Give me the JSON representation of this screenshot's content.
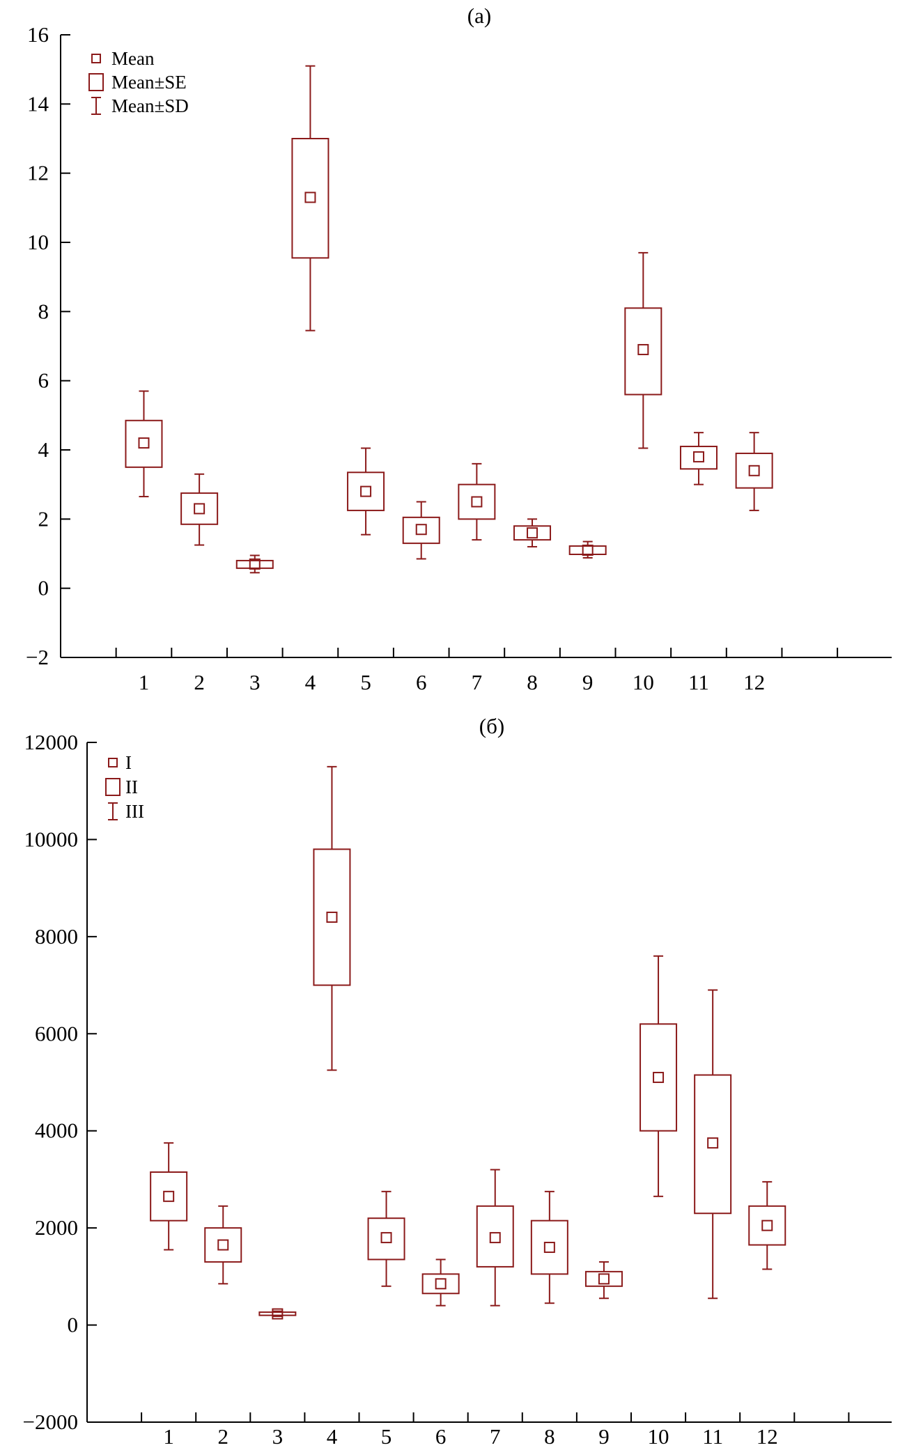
{
  "chart_data": [
    {
      "type": "box",
      "title": "(a)",
      "categories": [
        "1",
        "2",
        "3",
        "4",
        "5",
        "6",
        "7",
        "8",
        "9",
        "10",
        "11",
        "12"
      ],
      "ylim": [
        -2,
        16
      ],
      "yticks": [
        -2,
        0,
        2,
        4,
        6,
        8,
        10,
        12,
        14,
        16
      ],
      "ytick_labels": [
        "−2",
        "0",
        "2",
        "4",
        "6",
        "8",
        "10",
        "12",
        "14",
        "16"
      ],
      "legend": {
        "position": "top-left",
        "entries": [
          "Mean",
          "Mean±SE",
          "Mean±SD"
        ]
      },
      "series": [
        {
          "category": "1",
          "mean": 4.2,
          "se_low": 3.5,
          "se_high": 4.85,
          "sd_low": 2.65,
          "sd_high": 5.7
        },
        {
          "category": "2",
          "mean": 2.3,
          "se_low": 1.85,
          "se_high": 2.75,
          "sd_low": 1.25,
          "sd_high": 3.3
        },
        {
          "category": "3",
          "mean": 0.7,
          "se_low": 0.58,
          "se_high": 0.8,
          "sd_low": 0.45,
          "sd_high": 0.95
        },
        {
          "category": "4",
          "mean": 11.3,
          "se_low": 9.55,
          "se_high": 13.0,
          "sd_low": 7.45,
          "sd_high": 15.1
        },
        {
          "category": "5",
          "mean": 2.8,
          "se_low": 2.25,
          "se_high": 3.35,
          "sd_low": 1.55,
          "sd_high": 4.05
        },
        {
          "category": "6",
          "mean": 1.7,
          "se_low": 1.3,
          "se_high": 2.05,
          "sd_low": 0.85,
          "sd_high": 2.5
        },
        {
          "category": "7",
          "mean": 2.5,
          "se_low": 2.0,
          "se_high": 3.0,
          "sd_low": 1.4,
          "sd_high": 3.6
        },
        {
          "category": "8",
          "mean": 1.6,
          "se_low": 1.4,
          "se_high": 1.8,
          "sd_low": 1.2,
          "sd_high": 2.0
        },
        {
          "category": "9",
          "mean": 1.1,
          "se_low": 0.98,
          "se_high": 1.22,
          "sd_low": 0.88,
          "sd_high": 1.35
        },
        {
          "category": "10",
          "mean": 6.9,
          "se_low": 5.6,
          "se_high": 8.1,
          "sd_low": 4.05,
          "sd_high": 9.7
        },
        {
          "category": "11",
          "mean": 3.8,
          "se_low": 3.45,
          "se_high": 4.1,
          "sd_low": 3.0,
          "sd_high": 4.5
        },
        {
          "category": "12",
          "mean": 3.4,
          "se_low": 2.9,
          "se_high": 3.9,
          "sd_low": 2.25,
          "sd_high": 4.5
        }
      ]
    },
    {
      "type": "box",
      "title": "(б)",
      "categories": [
        "1",
        "2",
        "3",
        "4",
        "5",
        "6",
        "7",
        "8",
        "9",
        "10",
        "11",
        "12"
      ],
      "ylim": [
        -2000,
        12000
      ],
      "yticks": [
        -2000,
        0,
        2000,
        4000,
        6000,
        8000,
        10000,
        12000
      ],
      "ytick_labels": [
        "−2000",
        "0",
        "2000",
        "4000",
        "6000",
        "8000",
        "10000",
        "12000"
      ],
      "legend": {
        "position": "top-left",
        "entries": [
          "I",
          "II",
          "III"
        ]
      },
      "series": [
        {
          "category": "1",
          "mean": 2650,
          "se_low": 2150,
          "se_high": 3150,
          "sd_low": 1550,
          "sd_high": 3750
        },
        {
          "category": "2",
          "mean": 1650,
          "se_low": 1300,
          "se_high": 2000,
          "sd_low": 850,
          "sd_high": 2450
        },
        {
          "category": "3",
          "mean": 230,
          "se_low": 200,
          "se_high": 265,
          "sd_low": 180,
          "sd_high": 285
        },
        {
          "category": "4",
          "mean": 8400,
          "se_low": 7000,
          "se_high": 9800,
          "sd_low": 5250,
          "sd_high": 11500
        },
        {
          "category": "5",
          "mean": 1800,
          "se_low": 1350,
          "se_high": 2200,
          "sd_low": 800,
          "sd_high": 2750
        },
        {
          "category": "6",
          "mean": 850,
          "se_low": 650,
          "se_high": 1050,
          "sd_low": 400,
          "sd_high": 1350
        },
        {
          "category": "7",
          "mean": 1800,
          "se_low": 1200,
          "se_high": 2450,
          "sd_low": 400,
          "sd_high": 3200
        },
        {
          "category": "8",
          "mean": 1600,
          "se_low": 1050,
          "se_high": 2150,
          "sd_low": 450,
          "sd_high": 2750
        },
        {
          "category": "9",
          "mean": 950,
          "se_low": 800,
          "se_high": 1100,
          "sd_low": 550,
          "sd_high": 1300
        },
        {
          "category": "10",
          "mean": 5100,
          "se_low": 4000,
          "se_high": 6200,
          "sd_low": 2650,
          "sd_high": 7600
        },
        {
          "category": "11",
          "mean": 3750,
          "se_low": 2300,
          "se_high": 5150,
          "sd_low": 550,
          "sd_high": 6900
        },
        {
          "category": "12",
          "mean": 2050,
          "se_low": 1650,
          "se_high": 2450,
          "sd_low": 1150,
          "sd_high": 2950
        }
      ]
    }
  ],
  "colors": {
    "series": "#8b1a1a",
    "axis": "#000000"
  }
}
